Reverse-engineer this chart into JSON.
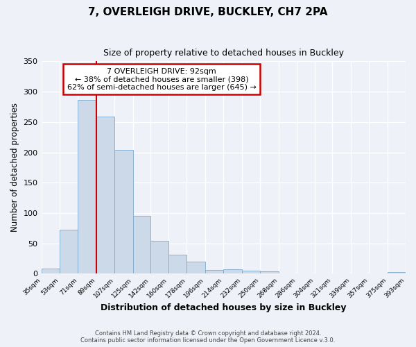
{
  "title": "7, OVERLEIGH DRIVE, BUCKLEY, CH7 2PA",
  "subtitle": "Size of property relative to detached houses in Buckley",
  "xlabel": "Distribution of detached houses by size in Buckley",
  "ylabel": "Number of detached properties",
  "bar_color": "#ccd9e8",
  "bar_edge_color": "#7aaace",
  "background_color": "#eef2f8",
  "annotation_text_line1": "7 OVERLEIGH DRIVE: 92sqm",
  "annotation_text_line2": "← 38% of detached houses are smaller (398)",
  "annotation_text_line3": "62% of semi-detached houses are larger (645) →",
  "annotation_box_color": "#ffffff",
  "annotation_box_edge_color": "#cc0000",
  "annotation_line_color": "#cc0000",
  "footer_line1": "Contains HM Land Registry data © Crown copyright and database right 2024.",
  "footer_line2": "Contains public sector information licensed under the Open Government Licence v.3.0.",
  "ylim": [
    0,
    350
  ],
  "yticks": [
    0,
    50,
    100,
    150,
    200,
    250,
    300,
    350
  ],
  "bin_edges": [
    35,
    53,
    71,
    89,
    107,
    125,
    142,
    160,
    178,
    196,
    214,
    232,
    250,
    268,
    286,
    304,
    321,
    339,
    357,
    375,
    393
  ],
  "bin_labels": [
    "35sqm",
    "53sqm",
    "71sqm",
    "89sqm",
    "107sqm",
    "125sqm",
    "142sqm",
    "160sqm",
    "178sqm",
    "196sqm",
    "214sqm",
    "232sqm",
    "250sqm",
    "268sqm",
    "286sqm",
    "304sqm",
    "321sqm",
    "339sqm",
    "357sqm",
    "375sqm",
    "393sqm"
  ],
  "bar_heights": [
    9,
    73,
    286,
    259,
    204,
    96,
    54,
    31,
    20,
    6,
    8,
    5,
    4,
    0,
    0,
    0,
    0,
    0,
    0,
    3
  ],
  "red_line_bar_index": 3
}
